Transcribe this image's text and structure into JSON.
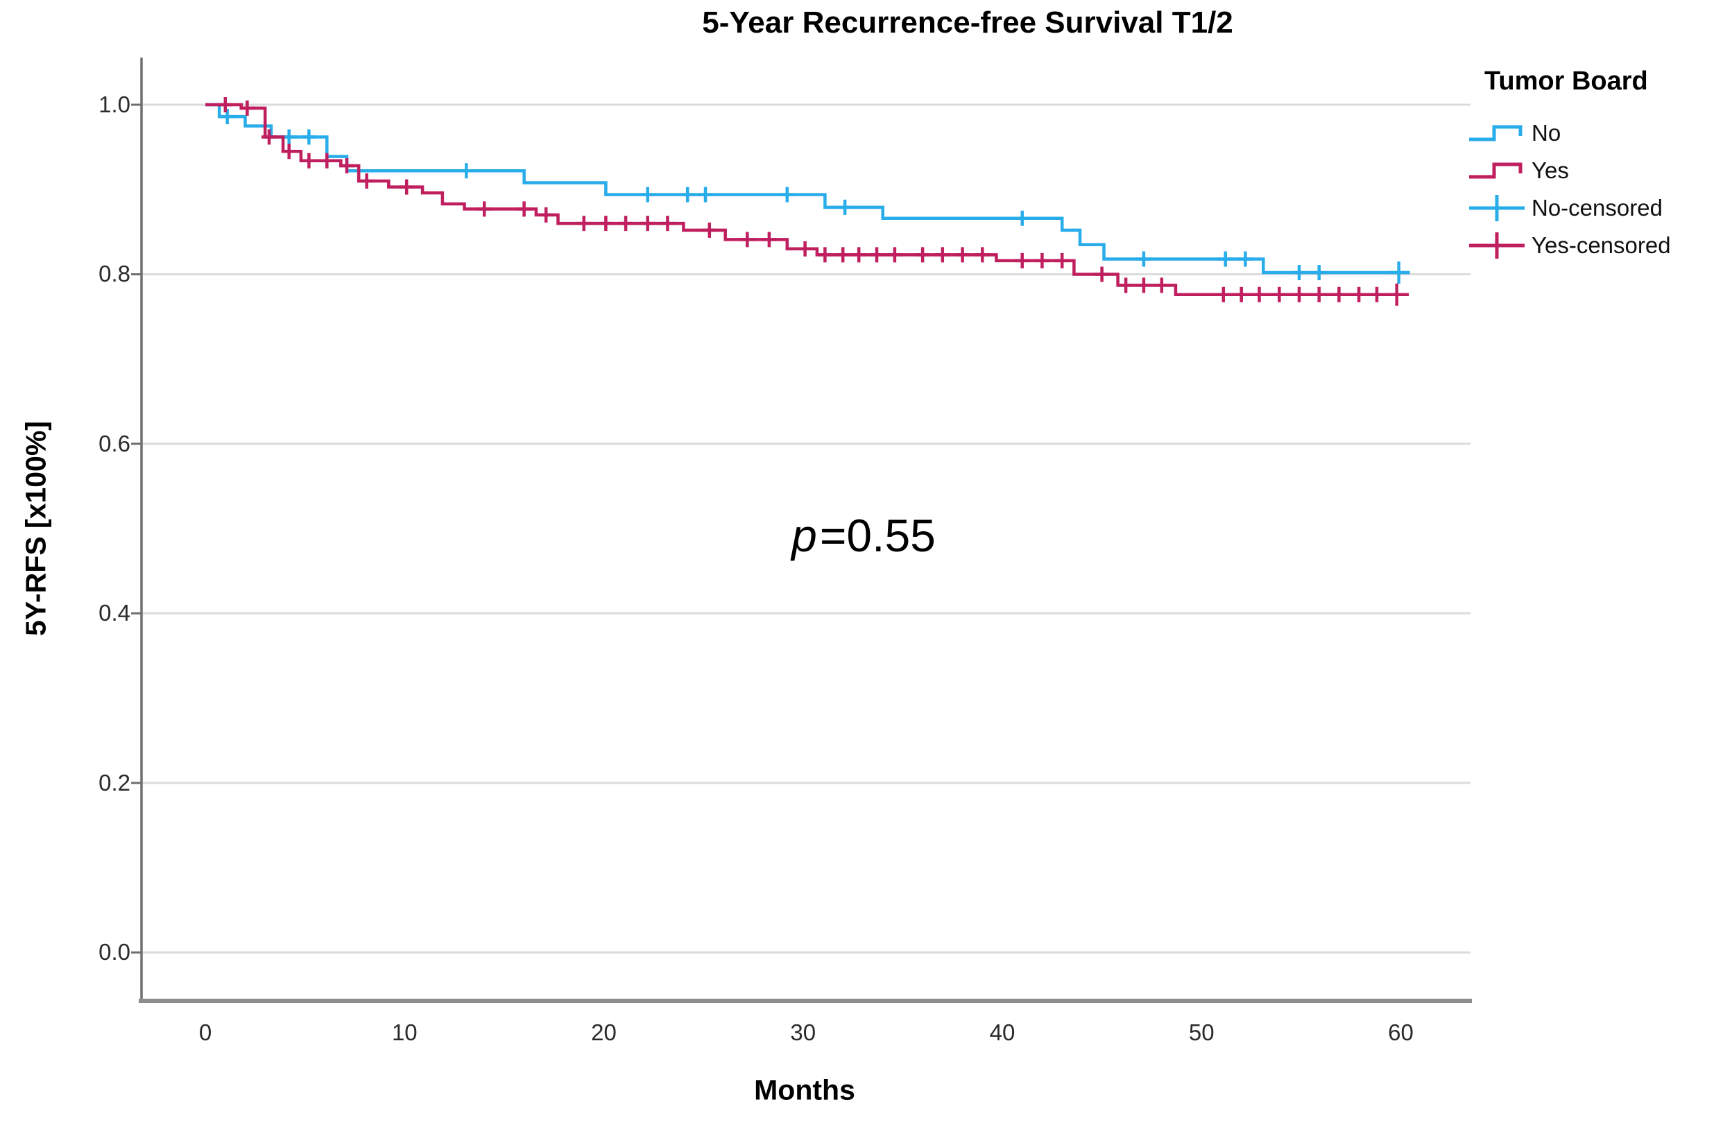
{
  "title": "5-Year Recurrence-free Survival T1/2",
  "annotation": {
    "p_symbol": "p",
    "p_text": "=0.55"
  },
  "axes": {
    "x_label": "Months",
    "y_label": "5Y-RFS [x100%]",
    "x_ticks": [
      0,
      10,
      20,
      30,
      40,
      50,
      60
    ],
    "y_ticks": [
      "0.0",
      "0.2",
      "0.4",
      "0.6",
      "0.8",
      "1.0"
    ]
  },
  "legend": {
    "title": "Tumor Board",
    "items": [
      {
        "label": "No",
        "swatch": "step",
        "color": "#29ACEA"
      },
      {
        "label": "Yes",
        "swatch": "step",
        "color": "#C01F5F"
      },
      {
        "label": "No-censored",
        "swatch": "censor",
        "color": "#29ACEA"
      },
      {
        "label": "Yes-censored",
        "swatch": "censor",
        "color": "#C01F5F"
      }
    ]
  },
  "colors": {
    "no_line": "#29ACEA",
    "yes_line": "#C01F5F",
    "gridline": "#DBDBDB",
    "y_axis": "#6F6F6F",
    "x_axis": "#8C8C8C",
    "text": "#000000"
  },
  "chart_data": {
    "type": "line",
    "subtype": "kaplan-meier-step",
    "title": "5-Year Recurrence-free Survival T1/2",
    "xlabel": "Months",
    "ylabel": "5Y-RFS [x100%]",
    "xlim": [
      -3.24,
      63.5
    ],
    "ylim": [
      -0.057,
      1.054
    ],
    "grid_values": [
      0.0,
      0.2,
      0.4,
      0.6,
      0.8,
      1.0
    ],
    "x_tick_values": [
      0,
      10,
      20,
      30,
      40,
      50,
      60
    ],
    "legend_position": "upper-right",
    "p_value": 0.55,
    "series": [
      {
        "name": "No",
        "color": "#29ACEA",
        "end_time": 60.4,
        "steps": [
          [
            0,
            1.0
          ],
          [
            0.7,
            0.986
          ],
          [
            2.0,
            0.975
          ],
          [
            3.3,
            0.962
          ],
          [
            6.1,
            0.939
          ],
          [
            7.1,
            0.922
          ],
          [
            16.0,
            0.908
          ],
          [
            20.1,
            0.894
          ],
          [
            31.1,
            0.879
          ],
          [
            34.0,
            0.866
          ],
          [
            43.0,
            0.852
          ],
          [
            43.9,
            0.835
          ],
          [
            45.1,
            0.818
          ],
          [
            53.1,
            0.802
          ]
        ],
        "censors": [
          1.1,
          4.2,
          5.2,
          13.1,
          22.2,
          24.2,
          25.1,
          29.2,
          32.1,
          41.0,
          47.1,
          51.2,
          52.2,
          54.9,
          55.9
        ],
        "censors_large": [
          59.9
        ]
      },
      {
        "name": "Yes",
        "color": "#C01F5F",
        "end_time": 60.4,
        "steps": [
          [
            0,
            1.0
          ],
          [
            1.8,
            0.996
          ],
          [
            3.0,
            0.962
          ],
          [
            3.9,
            0.945
          ],
          [
            4.8,
            0.934
          ],
          [
            6.8,
            0.928
          ],
          [
            7.7,
            0.91
          ],
          [
            9.2,
            0.903
          ],
          [
            10.9,
            0.896
          ],
          [
            11.9,
            0.883
          ],
          [
            13.0,
            0.877
          ],
          [
            16.6,
            0.87
          ],
          [
            17.7,
            0.86
          ],
          [
            24.0,
            0.852
          ],
          [
            26.1,
            0.841
          ],
          [
            29.2,
            0.83
          ],
          [
            30.7,
            0.823
          ],
          [
            39.7,
            0.816
          ],
          [
            43.6,
            0.8
          ],
          [
            45.8,
            0.787
          ],
          [
            48.7,
            0.776
          ]
        ],
        "censors": [
          1.0,
          2.1,
          3.2,
          4.2,
          5.2,
          6.1,
          7.1,
          8.1,
          10.1,
          14.0,
          16.0,
          17.1,
          19.0,
          20.1,
          21.1,
          22.2,
          23.2,
          25.3,
          27.2,
          28.3,
          30.1,
          31.1,
          32.0,
          32.8,
          33.7,
          34.6,
          36.0,
          37.0,
          38.0,
          39.0,
          41.0,
          42.0,
          43.0,
          45.0,
          46.2,
          47.1,
          48.0,
          51.1,
          52.0,
          52.9,
          53.9,
          54.9,
          55.9,
          56.9,
          57.9,
          58.8
        ],
        "censors_large": [
          59.8
        ]
      }
    ]
  }
}
